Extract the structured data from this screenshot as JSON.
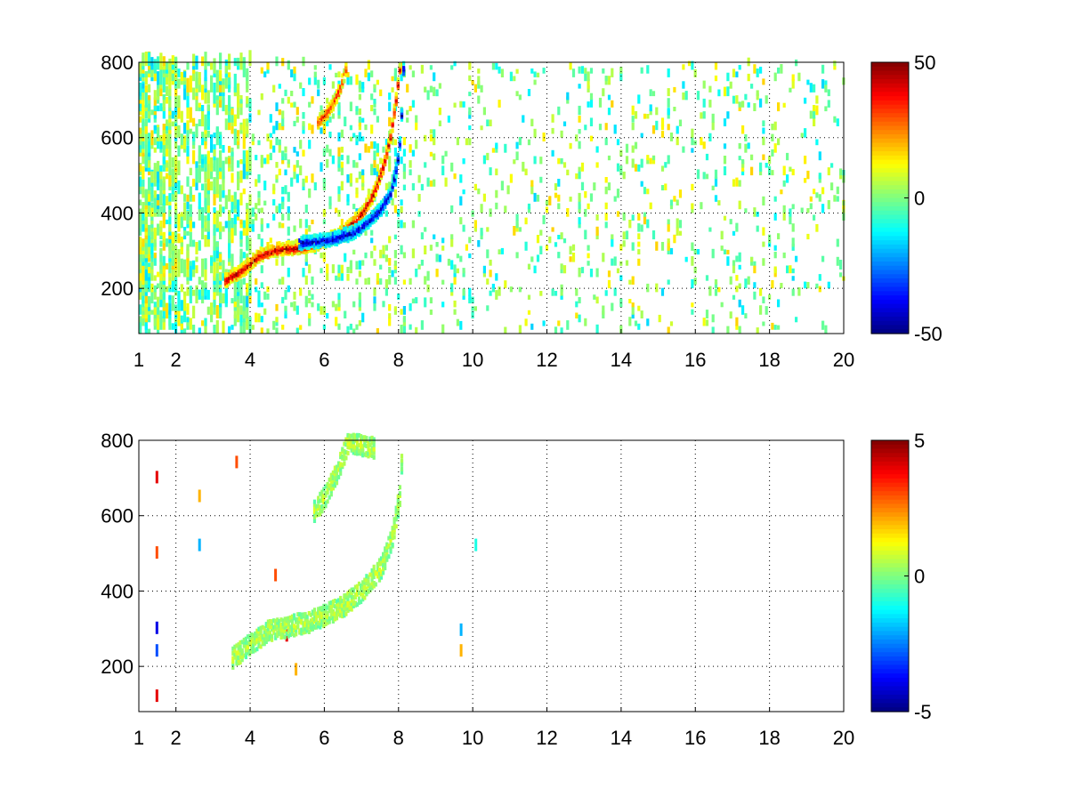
{
  "chart_data": [
    {
      "type": "heatmap",
      "title": "",
      "xlabel": "",
      "ylabel": "",
      "xlim": [
        1,
        20
      ],
      "ylim": [
        80,
        800
      ],
      "xticks": [
        1,
        2,
        4,
        6,
        8,
        10,
        12,
        14,
        16,
        18,
        20
      ],
      "yticks": [
        200,
        400,
        600,
        800
      ],
      "grid": true,
      "colormap": "jet",
      "colorbar": {
        "min": -50,
        "max": 50,
        "ticks": [
          50,
          0,
          -50
        ]
      },
      "features": [
        {
          "name": "red ridge (positive)",
          "value": 45,
          "points": [
            [
              3.3,
              220
            ],
            [
              3.8,
              250
            ],
            [
              4.2,
              285
            ],
            [
              4.6,
              300
            ],
            [
              5.0,
              305
            ],
            [
              5.5,
              310
            ],
            [
              6.0,
              325
            ],
            [
              6.5,
              350
            ],
            [
              7.0,
              400
            ],
            [
              7.3,
              450
            ],
            [
              7.55,
              520
            ],
            [
              7.75,
              600
            ],
            [
              7.9,
              700
            ],
            [
              8.0,
              780
            ]
          ]
        },
        {
          "name": "blue ridge (negative)",
          "value": -45,
          "points": [
            [
              5.3,
              320
            ],
            [
              5.8,
              325
            ],
            [
              6.3,
              332
            ],
            [
              6.8,
              350
            ],
            [
              7.2,
              380
            ],
            [
              7.5,
              410
            ],
            [
              7.75,
              450
            ],
            [
              7.92,
              520
            ],
            [
              8.02,
              600
            ],
            [
              8.07,
              700
            ],
            [
              8.1,
              780
            ]
          ]
        },
        {
          "name": "upper red branch",
          "value": 35,
          "points": [
            [
              5.8,
              640
            ],
            [
              6.0,
              660
            ],
            [
              6.2,
              690
            ],
            [
              6.4,
              730
            ],
            [
              6.55,
              780
            ]
          ]
        }
      ]
    },
    {
      "type": "heatmap",
      "title": "",
      "xlabel": "",
      "ylabel": "",
      "xlim": [
        1,
        20
      ],
      "ylim": [
        80,
        800
      ],
      "xticks": [
        1,
        2,
        4,
        6,
        8,
        10,
        12,
        14,
        16,
        18,
        20
      ],
      "yticks": [
        200,
        400,
        600,
        800
      ],
      "grid": true,
      "colormap": "jet",
      "colorbar": {
        "min": -5,
        "max": 5,
        "ticks": [
          5,
          0,
          -5
        ]
      },
      "features": [
        {
          "name": "main band (near zero)",
          "value": 0.5,
          "points": [
            [
              3.5,
              220
            ],
            [
              4.0,
              260
            ],
            [
              4.5,
              295
            ],
            [
              5.0,
              305
            ],
            [
              5.5,
              315
            ],
            [
              6.0,
              335
            ],
            [
              6.5,
              360
            ],
            [
              7.0,
              400
            ],
            [
              7.5,
              460
            ],
            [
              7.8,
              540
            ],
            [
              8.0,
              650
            ],
            [
              8.05,
              740
            ]
          ]
        },
        {
          "name": "upper branch (near zero)",
          "value": 0.5,
          "points": [
            [
              5.7,
              610
            ],
            [
              6.0,
              650
            ],
            [
              6.3,
              710
            ],
            [
              6.6,
              790
            ],
            [
              7.3,
              780
            ]
          ]
        }
      ]
    }
  ]
}
